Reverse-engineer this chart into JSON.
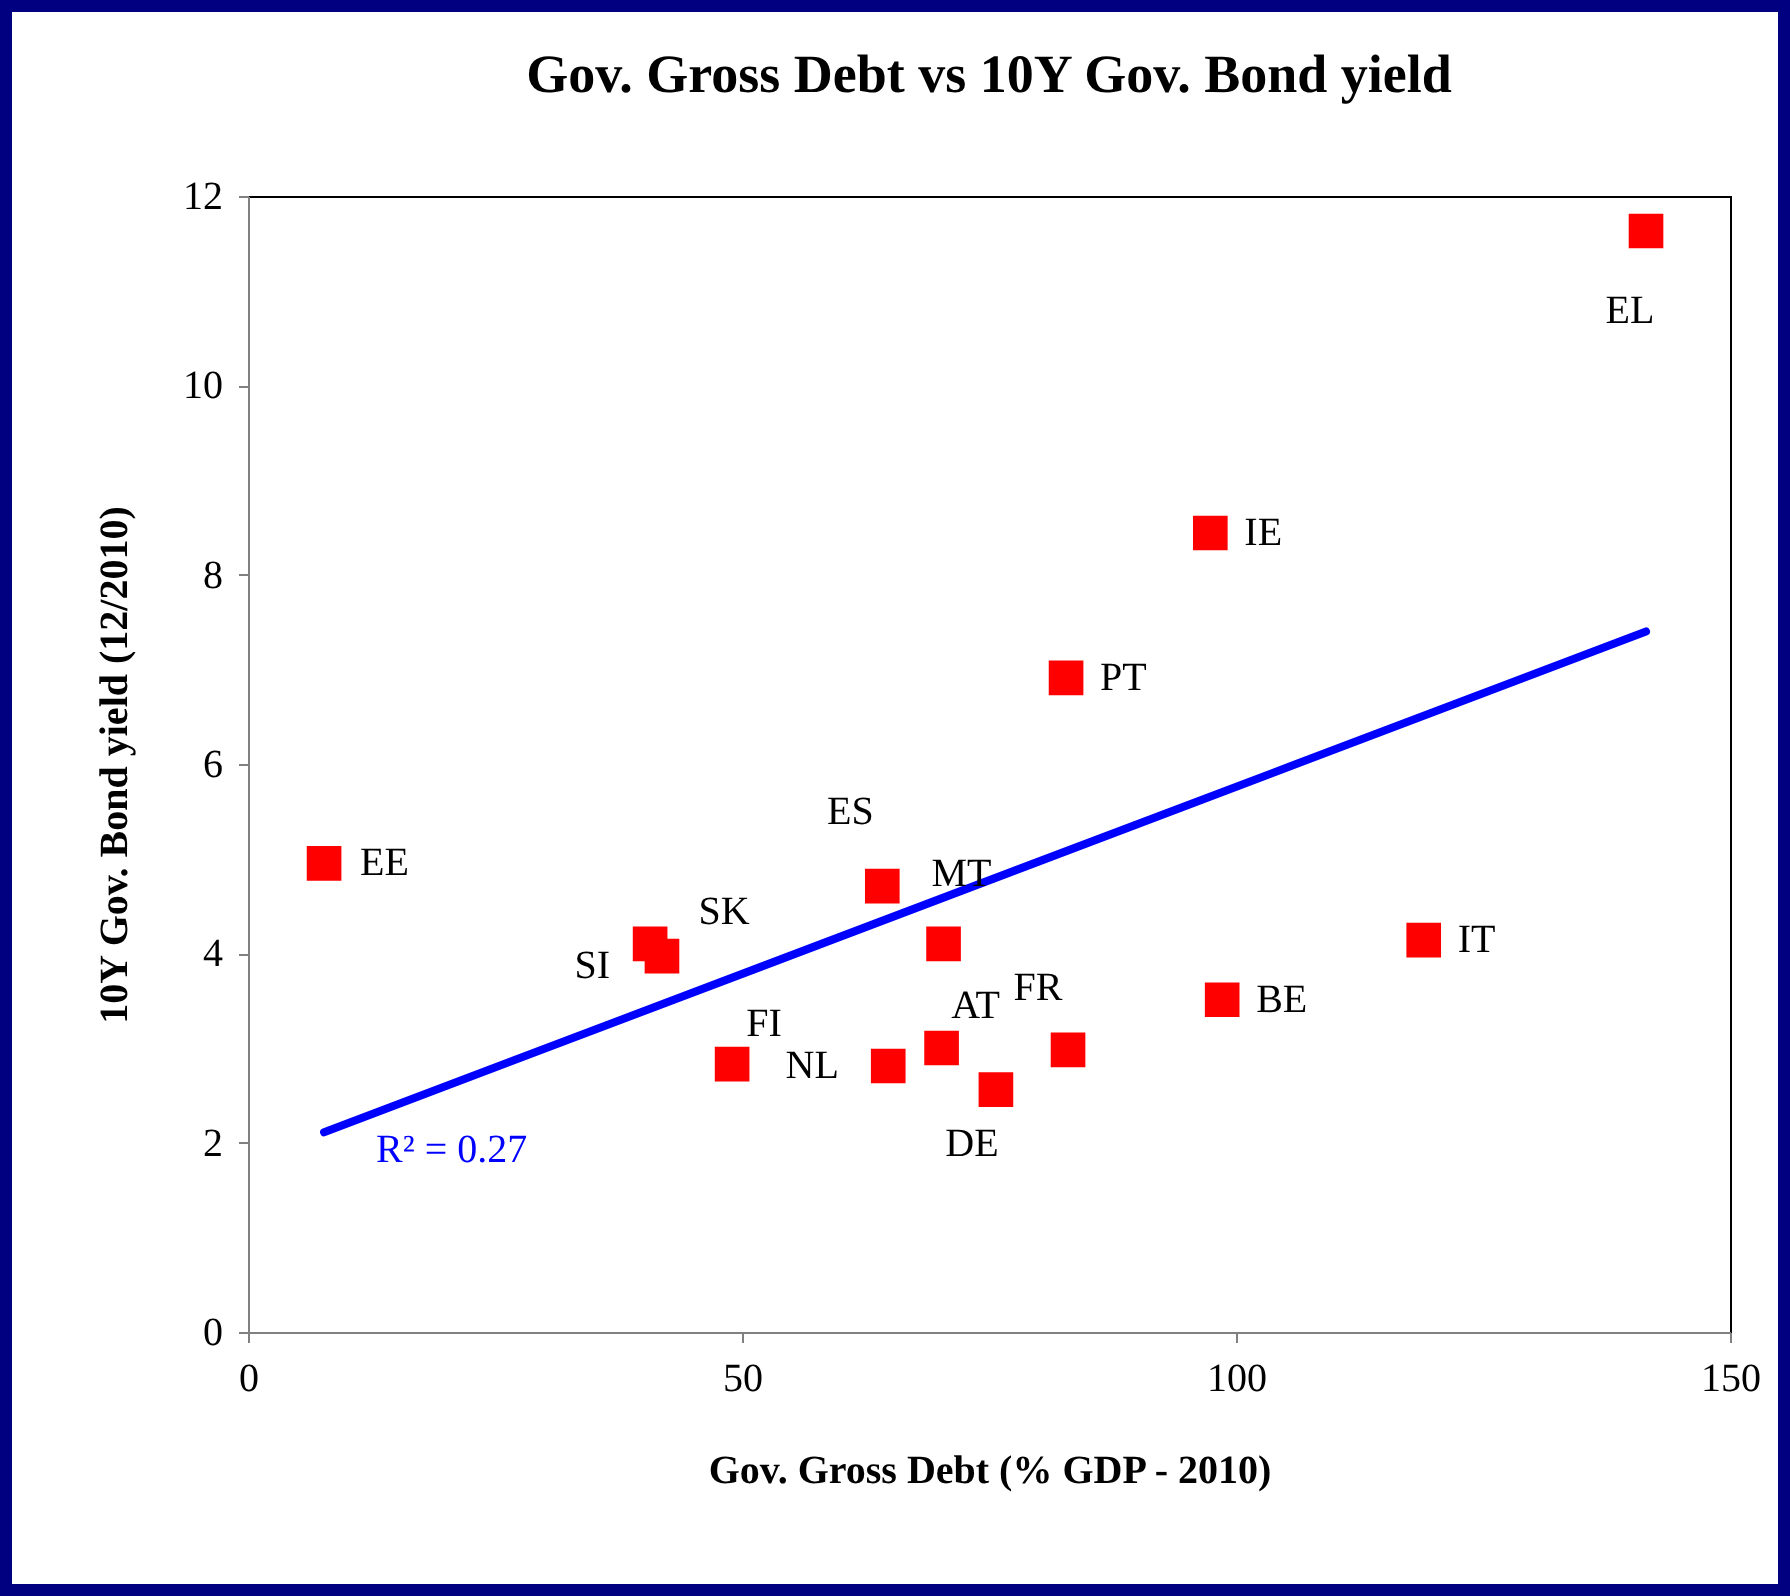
{
  "chart_data": {
    "type": "scatter",
    "title": "Gov. Gross Debt vs 10Y Gov. Bond yield",
    "xlabel": "Gov. Gross Debt (% GDP - 2010)",
    "ylabel": "10Y Gov. Bond yield (12/2010)",
    "xlim": [
      0,
      150
    ],
    "xticks": [
      0,
      50,
      100,
      150
    ],
    "ylim": [
      0,
      12
    ],
    "yticks": [
      0,
      2,
      4,
      6,
      8,
      10,
      12
    ],
    "grid": false,
    "marker": "square",
    "series": [
      {
        "color": "#ff0000",
        "x": [
          7.7,
          40.7,
          41.9,
          49.0,
          64.8,
          64.2,
          70.4,
          70.2,
          75.7,
          83.0,
          82.8,
          97.4,
          98.6,
          119.0,
          141.5
        ],
        "values": [
          4.95,
          4.1,
          3.97,
          2.83,
          2.81,
          4.71,
          4.1,
          3.0,
          2.56,
          2.98,
          6.91,
          8.44,
          3.51,
          4.14,
          11.63
        ]
      },
      {
        "type": "line",
        "marker": "none",
        "color": "#0000ff",
        "x": [
          7.7,
          141.5
        ],
        "values": [
          2.11,
          7.4
        ]
      }
    ],
    "annotations": [
      {
        "text": "EE",
        "x": 7.7,
        "y": 4.95
      },
      {
        "text": "SI",
        "x": 40.7,
        "y": 4.1
      },
      {
        "text": "SK",
        "x": 41.9,
        "y": 3.97
      },
      {
        "text": "FI",
        "x": 49.0,
        "y": 2.83
      },
      {
        "text": "NL",
        "x": 64.8,
        "y": 2.81
      },
      {
        "text": "ES",
        "x": 64.2,
        "y": 4.71
      },
      {
        "text": "MT",
        "x": 70.4,
        "y": 4.1
      },
      {
        "text": "AT",
        "x": 70.2,
        "y": 3.0
      },
      {
        "text": "DE",
        "x": 75.7,
        "y": 2.56
      },
      {
        "text": "FR",
        "x": 83.0,
        "y": 2.98
      },
      {
        "text": "PT",
        "x": 82.8,
        "y": 6.91
      },
      {
        "text": "IE",
        "x": 97.4,
        "y": 8.44
      },
      {
        "text": "BE",
        "x": 98.6,
        "y": 3.51
      },
      {
        "text": "IT",
        "x": 119.0,
        "y": 4.14
      },
      {
        "text": "EL",
        "x": 141.5,
        "y": 11.63
      },
      {
        "text": "R² = 0.27",
        "x": 7.7,
        "y": 2.11
      }
    ]
  }
}
